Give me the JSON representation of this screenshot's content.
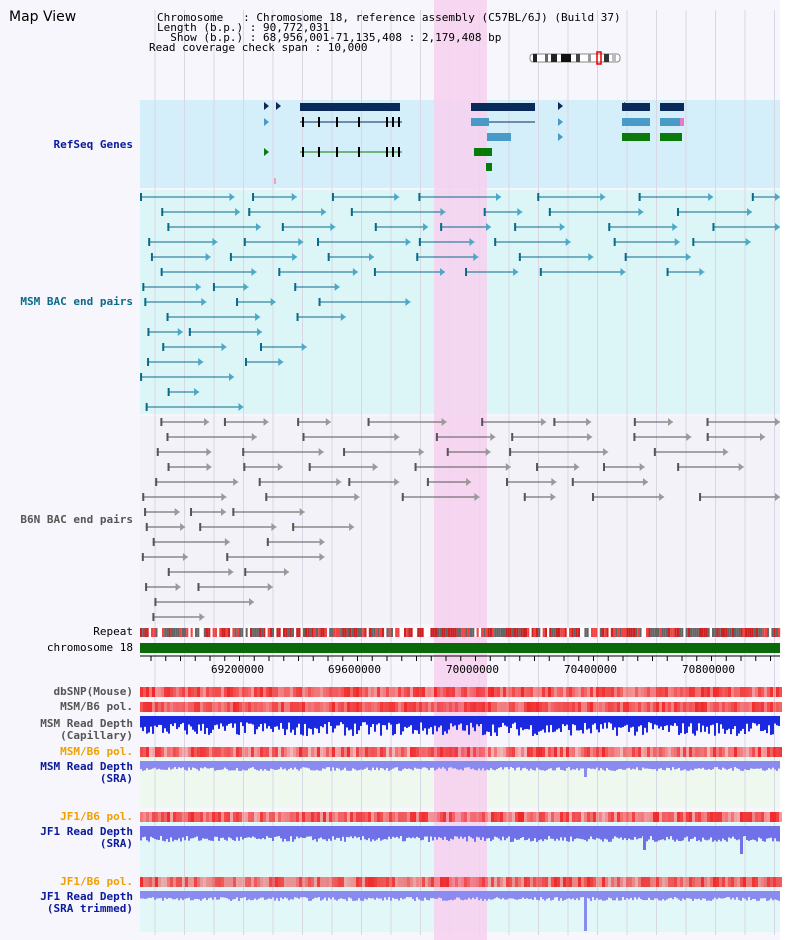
{
  "header": {
    "title": "Map View",
    "chromosome_line": "Chromosome   : Chromosome 18, reference assembly (C57BL/6J) (Build 37)",
    "length_line": "Length (b.p.) : 90,772,031",
    "show_line": "  Show (b.p.) : 68,956,001-71,135,408 : 2,179,408 bp",
    "span_line": "Read coverage check span : 10,000"
  },
  "tracks": {
    "refseq": "RefSeq Genes",
    "msm_bac": "MSM BAC end pairs",
    "b6n_bac": "B6N BAC end pairs",
    "repeat": "Repeat",
    "chromosome": "chromosome 18",
    "dbsnp": "dbSNP(Mouse)",
    "msm_b6_pol": "MSM/B6 pol.",
    "msm_depth_cap_1": "MSM Read Depth",
    "msm_depth_cap_2": "(Capillary)",
    "msm_b6_pol2": "MSM/B6 pol.",
    "msm_depth_sra_1": "MSM Read Depth",
    "msm_depth_sra_2": "(SRA)",
    "jf1_b6_pol": "JF1/B6 pol.",
    "jf1_depth_sra_1": "JF1 Read Depth",
    "jf1_depth_sra_2": "(SRA)",
    "jf1_b6_pol2": "JF1/B6 pol.",
    "jf1_depth_trim_1": "JF1 Read Depth",
    "jf1_depth_trim_2": "(SRA trimmed)"
  },
  "axis_ticks": [
    "69200000",
    "69600000",
    "70000000",
    "70400000",
    "70800000"
  ],
  "colors": {
    "label_blue": "#0a1a9a",
    "label_teal": "#0b6a8a",
    "label_gray": "#555555",
    "label_orange": "#f0a000",
    "highlight": "#f7d0ee",
    "refseq_bg": "#d4eefa",
    "msm_bg": "#dcf6f8",
    "b6n_bg": "#f2f2f8",
    "chrom_bar": "#0a6a0a"
  }
}
